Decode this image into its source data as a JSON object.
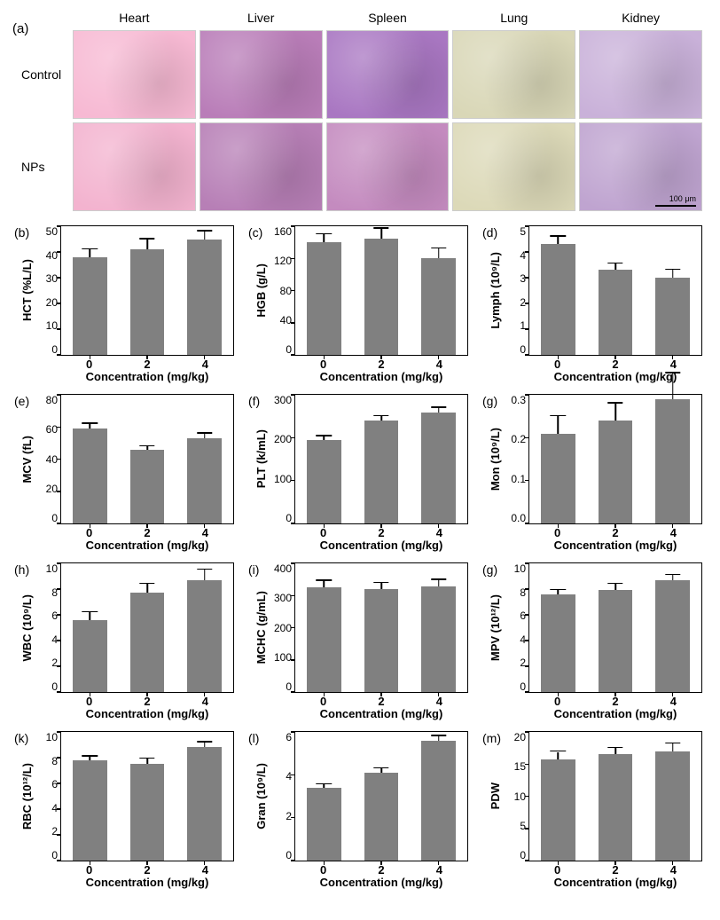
{
  "figure": {
    "background_color": "#ffffff",
    "axis_color": "#000000",
    "bar_color": "#808080",
    "error_color": "#000000",
    "font_family": "Arial",
    "panel_label_fontsize": 15,
    "axis_title_fontsize": 13,
    "tick_fontsize": 12
  },
  "panel_a": {
    "label": "(a)",
    "column_headers": [
      "Heart",
      "Liver",
      "Spleen",
      "Lung",
      "Kidney"
    ],
    "row_headers": [
      "Control",
      "NPs"
    ],
    "scalebar_text": "100 μm",
    "cells": [
      {
        "row": "Control",
        "col": "Heart",
        "color": "#f7b9d3"
      },
      {
        "row": "Control",
        "col": "Liver",
        "color": "#b97db8"
      },
      {
        "row": "Control",
        "col": "Spleen",
        "color": "#a977c2"
      },
      {
        "row": "Control",
        "col": "Lung",
        "color": "#d9d7b7"
      },
      {
        "row": "Control",
        "col": "Kidney",
        "color": "#c9b1d9"
      },
      {
        "row": "NPs",
        "col": "Heart",
        "color": "#f3b3cf"
      },
      {
        "row": "NPs",
        "col": "Liver",
        "color": "#b77fb6"
      },
      {
        "row": "NPs",
        "col": "Spleen",
        "color": "#c48bbf"
      },
      {
        "row": "NPs",
        "col": "Lung",
        "color": "#dcd9b8"
      },
      {
        "row": "NPs",
        "col": "Kidney",
        "color": "#bfa4d0"
      }
    ]
  },
  "charts": [
    {
      "id": "b",
      "label": "(b)",
      "type": "bar",
      "ylabel": "HCT (%L/L)",
      "xlabel": "Concentration (mg/kg)",
      "categories": [
        "0",
        "2",
        "4"
      ],
      "values": [
        38,
        41,
        45
      ],
      "errors": [
        3,
        4,
        3
      ],
      "ylim": [
        0,
        50
      ],
      "ytick_step": 10,
      "bar_width": 0.6
    },
    {
      "id": "c",
      "label": "(c)",
      "type": "bar",
      "ylabel": "HGB (g/L)",
      "xlabel": "Concentration (mg/kg)",
      "categories": [
        "0",
        "2",
        "4"
      ],
      "values": [
        140,
        145,
        120
      ],
      "errors": [
        10,
        12,
        12
      ],
      "ylim": [
        0,
        160
      ],
      "ytick_step": 40,
      "bar_width": 0.6
    },
    {
      "id": "d",
      "label": "(d)",
      "type": "bar",
      "ylabel": "Lymph (10⁹/L)",
      "xlabel": "Concentration (mg/kg)",
      "categories": [
        "0",
        "2",
        "4"
      ],
      "values": [
        4.3,
        3.3,
        3.0
      ],
      "errors": [
        0.3,
        0.25,
        0.3
      ],
      "ylim": [
        0,
        5
      ],
      "ytick_step": 1,
      "bar_width": 0.6
    },
    {
      "id": "e",
      "label": "(e)",
      "type": "bar",
      "ylabel": "MCV (fL)",
      "xlabel": "Concentration (mg/kg)",
      "categories": [
        "0",
        "2",
        "4"
      ],
      "values": [
        59,
        46,
        53
      ],
      "errors": [
        3,
        2,
        3
      ],
      "ylim": [
        0,
        80
      ],
      "ytick_step": 20,
      "bar_width": 0.6
    },
    {
      "id": "f",
      "label": "(f)",
      "type": "bar",
      "ylabel": "PLT (k/mL)",
      "xlabel": "Concentration (mg/kg)",
      "categories": [
        "0",
        "2",
        "4"
      ],
      "values": [
        195,
        240,
        258
      ],
      "errors": [
        8,
        10,
        12
      ],
      "ylim": [
        0,
        300
      ],
      "ytick_step": 100,
      "bar_width": 0.6
    },
    {
      "id": "g",
      "label": "(g)",
      "type": "bar",
      "ylabel": "Mon (10⁹/L)",
      "xlabel": "Concentration (mg/kg)",
      "categories": [
        "0",
        "2",
        "4"
      ],
      "values": [
        0.21,
        0.24,
        0.29
      ],
      "errors": [
        0.04,
        0.04,
        0.06
      ],
      "ylim": [
        0.0,
        0.3
      ],
      "ytick_step": 0.1,
      "bar_width": 0.6
    },
    {
      "id": "h",
      "label": "(h)",
      "type": "bar",
      "ylabel": "WBC (10⁹/L)",
      "xlabel": "Concentration (mg/kg)",
      "categories": [
        "0",
        "2",
        "4"
      ],
      "values": [
        5.6,
        7.7,
        8.7
      ],
      "errors": [
        0.6,
        0.7,
        0.8
      ],
      "ylim": [
        0,
        10
      ],
      "ytick_step": 2,
      "bar_width": 0.6
    },
    {
      "id": "i",
      "label": "(i)",
      "type": "bar",
      "ylabel": "MCHC (g/mL)",
      "xlabel": "Concentration (mg/kg)",
      "categories": [
        "0",
        "2",
        "4"
      ],
      "values": [
        325,
        320,
        328
      ],
      "errors": [
        20,
        18,
        20
      ],
      "ylim": [
        0,
        400
      ],
      "ytick_step": 100,
      "bar_width": 0.6
    },
    {
      "id": "g2",
      "label": "(g)",
      "type": "bar",
      "ylabel": "MPV (10¹²/L)",
      "xlabel": "Concentration (mg/kg)",
      "categories": [
        "0",
        "2",
        "4"
      ],
      "values": [
        7.6,
        7.9,
        8.7
      ],
      "errors": [
        0.3,
        0.5,
        0.4
      ],
      "ylim": [
        0,
        10
      ],
      "ytick_step": 2,
      "bar_width": 0.6
    },
    {
      "id": "k",
      "label": "(k)",
      "type": "bar",
      "ylabel": "RBC (10¹²/L)",
      "xlabel": "Concentration (mg/kg)",
      "categories": [
        "0",
        "2",
        "4"
      ],
      "values": [
        7.8,
        7.5,
        8.8
      ],
      "errors": [
        0.3,
        0.4,
        0.4
      ],
      "ylim": [
        0,
        10
      ],
      "ytick_step": 2,
      "bar_width": 0.6
    },
    {
      "id": "l",
      "label": "(l)",
      "type": "bar",
      "ylabel": "Gran (10⁹/L)",
      "xlabel": "Concentration (mg/kg)",
      "categories": [
        "0",
        "2",
        "4"
      ],
      "values": [
        3.4,
        4.1,
        5.6
      ],
      "errors": [
        0.15,
        0.2,
        0.2
      ],
      "ylim": [
        0,
        6
      ],
      "ytick_step": 2,
      "bar_width": 0.6
    },
    {
      "id": "m",
      "label": "(m)",
      "type": "bar",
      "ylabel": "PDW",
      "xlabel": "Concentration (mg/kg)",
      "categories": [
        "0",
        "2",
        "4"
      ],
      "values": [
        15.7,
        16.5,
        17.0
      ],
      "errors": [
        1.2,
        1.0,
        1.2
      ],
      "ylim": [
        0,
        20
      ],
      "ytick_step": 5,
      "bar_width": 0.6
    }
  ]
}
